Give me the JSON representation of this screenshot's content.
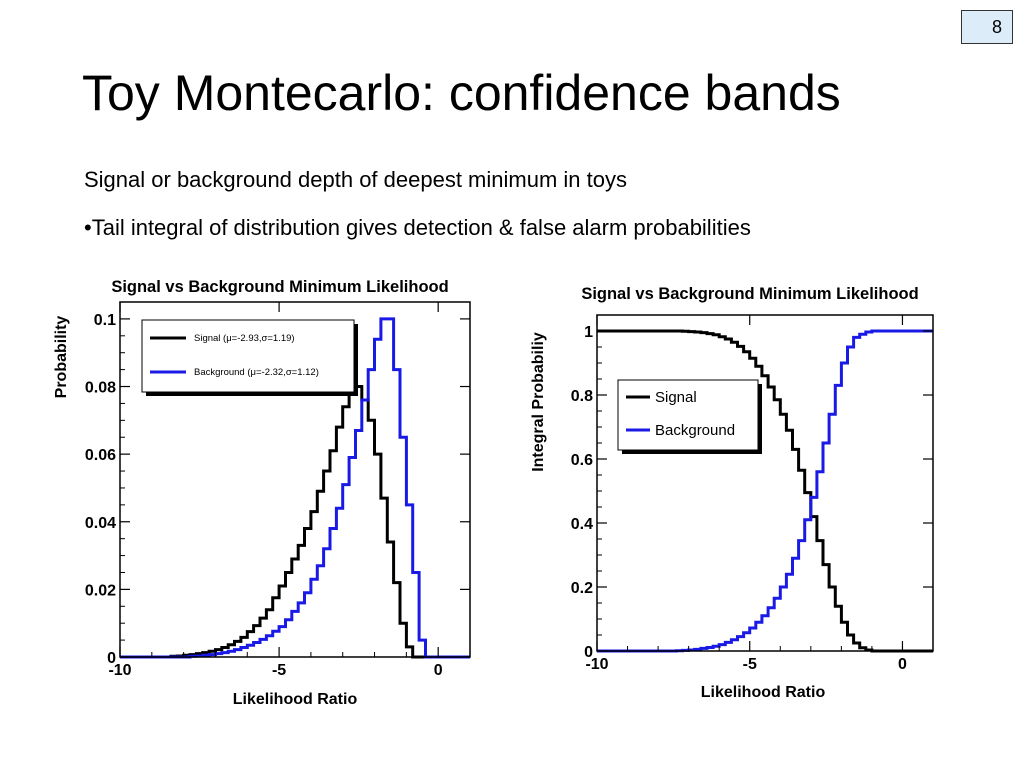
{
  "page_number": "8",
  "title": "Toy Montecarlo: confidence bands",
  "bullets": [
    "Signal or background depth of deepest minimum in toys",
    "•Tail integral of distribution gives detection & false alarm probabilities"
  ],
  "colors": {
    "signal": "#000000",
    "background": "#1a1ae6",
    "page_box": "#dcecf9"
  },
  "chart_data": [
    {
      "type": "line",
      "style": "step-histogram",
      "title": "Signal vs Background Minimum Likelihood",
      "xlabel": "Likelihood Ratio",
      "ylabel": "Probability",
      "xlim": [
        -10,
        1
      ],
      "ylim": [
        0,
        0.105
      ],
      "xticks": [
        -10,
        -5,
        0
      ],
      "xtick_labels": [
        "-10",
        "-5",
        "0"
      ],
      "yticks": [
        0,
        0.02,
        0.04,
        0.06,
        0.08,
        0.1
      ],
      "ytick_labels": [
        "0",
        "0.02",
        "0.04",
        "0.06",
        "0.08",
        "0.1"
      ],
      "legend_position": "top-left",
      "grid": false,
      "x_edges": [
        -10,
        -9.8,
        -9.6,
        -9.4,
        -9.2,
        -9.0,
        -8.8,
        -8.6,
        -8.4,
        -8.2,
        -8.0,
        -7.8,
        -7.6,
        -7.4,
        -7.2,
        -7.0,
        -6.8,
        -6.6,
        -6.4,
        -6.2,
        -6.0,
        -5.8,
        -5.6,
        -5.4,
        -5.2,
        -5.0,
        -4.8,
        -4.6,
        -4.4,
        -4.2,
        -4.0,
        -3.8,
        -3.6,
        -3.4,
        -3.2,
        -3.0,
        -2.8,
        -2.6,
        -2.4,
        -2.2,
        -2.0,
        -1.8,
        -1.6,
        -1.4,
        -1.2,
        -1.0,
        -0.8,
        -0.6,
        -0.4,
        -0.2,
        0.0,
        0.2,
        0.4,
        0.6,
        0.8,
        1.0
      ],
      "series": [
        {
          "name": "Signal (μ=-2.93,σ=1.19)",
          "values": [
            0,
            0,
            0,
            0,
            0,
            0,
            0,
            0,
            0.0002,
            0.0003,
            0.0005,
            0.0007,
            0.001,
            0.0013,
            0.0017,
            0.0022,
            0.0028,
            0.0036,
            0.0046,
            0.0058,
            0.0075,
            0.0093,
            0.0115,
            0.014,
            0.0175,
            0.021,
            0.025,
            0.029,
            0.033,
            0.038,
            0.043,
            0.049,
            0.055,
            0.061,
            0.068,
            0.074,
            0.079,
            0.08,
            0.076,
            0.07,
            0.06,
            0.047,
            0.034,
            0.022,
            0.01,
            0.003,
            0,
            0,
            0,
            0,
            0,
            0,
            0,
            0,
            0
          ]
        },
        {
          "name": "Background (μ=-2.32,σ=1.12)",
          "values": [
            0,
            0,
            0,
            0,
            0,
            0,
            0,
            0,
            0,
            0,
            0,
            0.0002,
            0.0003,
            0.0005,
            0.0007,
            0.001,
            0.0013,
            0.0017,
            0.0022,
            0.0028,
            0.0035,
            0.0043,
            0.0052,
            0.0063,
            0.0076,
            0.009,
            0.011,
            0.0135,
            0.016,
            0.019,
            0.023,
            0.027,
            0.032,
            0.038,
            0.044,
            0.051,
            0.059,
            0.067,
            0.076,
            0.085,
            0.094,
            0.1,
            0.1,
            0.085,
            0.065,
            0.045,
            0.025,
            0.005,
            0,
            0,
            0,
            0,
            0,
            0,
            0
          ]
        }
      ]
    },
    {
      "type": "line",
      "style": "step-cumulative",
      "title": "Signal vs Background Minimum Likelihood",
      "xlabel": "Likelihood Ratio",
      "ylabel": "Integral Probabiliy",
      "xlim": [
        -10,
        1
      ],
      "ylim": [
        0,
        1.05
      ],
      "xticks": [
        -10,
        -5,
        0
      ],
      "xtick_labels": [
        "-10",
        "-5",
        "0"
      ],
      "yticks": [
        0,
        0.2,
        0.4,
        0.6,
        0.8,
        1
      ],
      "ytick_labels": [
        "0",
        "0.2",
        "0.4",
        "0.6",
        "0.8",
        "1"
      ],
      "legend_position": "upper-middle-left",
      "grid": false,
      "x_edges": [
        -10,
        -9.8,
        -9.6,
        -9.4,
        -9.2,
        -9.0,
        -8.8,
        -8.6,
        -8.4,
        -8.2,
        -8.0,
        -7.8,
        -7.6,
        -7.4,
        -7.2,
        -7.0,
        -6.8,
        -6.6,
        -6.4,
        -6.2,
        -6.0,
        -5.8,
        -5.6,
        -5.4,
        -5.2,
        -5.0,
        -4.8,
        -4.6,
        -4.4,
        -4.2,
        -4.0,
        -3.8,
        -3.6,
        -3.4,
        -3.2,
        -3.0,
        -2.8,
        -2.6,
        -2.4,
        -2.2,
        -2.0,
        -1.8,
        -1.6,
        -1.4,
        -1.2,
        -1.0,
        -0.8,
        -0.6,
        -0.4,
        -0.2,
        0.0,
        0.2,
        0.4,
        0.6,
        0.8,
        1.0
      ],
      "series": [
        {
          "name": "Signal",
          "values": [
            1,
            1,
            1,
            1,
            1,
            1,
            1,
            1,
            1,
            1,
            1,
            1,
            1,
            1,
            0.999,
            0.998,
            0.997,
            0.995,
            0.992,
            0.988,
            0.982,
            0.975,
            0.965,
            0.952,
            0.935,
            0.915,
            0.89,
            0.86,
            0.825,
            0.785,
            0.74,
            0.69,
            0.63,
            0.565,
            0.495,
            0.42,
            0.345,
            0.27,
            0.2,
            0.14,
            0.09,
            0.05,
            0.025,
            0.01,
            0.003,
            0,
            0,
            0,
            0,
            0,
            0,
            0,
            0,
            0,
            0
          ]
        },
        {
          "name": "Background",
          "values": [
            0,
            0,
            0,
            0,
            0,
            0,
            0,
            0,
            0,
            0,
            0,
            0,
            0,
            0.001,
            0.002,
            0.003,
            0.005,
            0.008,
            0.011,
            0.015,
            0.02,
            0.027,
            0.035,
            0.045,
            0.057,
            0.072,
            0.09,
            0.11,
            0.135,
            0.165,
            0.2,
            0.24,
            0.29,
            0.345,
            0.41,
            0.48,
            0.56,
            0.65,
            0.74,
            0.83,
            0.9,
            0.95,
            0.98,
            0.99,
            0.997,
            1,
            1,
            1,
            1,
            1,
            1,
            1,
            1,
            1,
            1
          ]
        }
      ]
    }
  ]
}
